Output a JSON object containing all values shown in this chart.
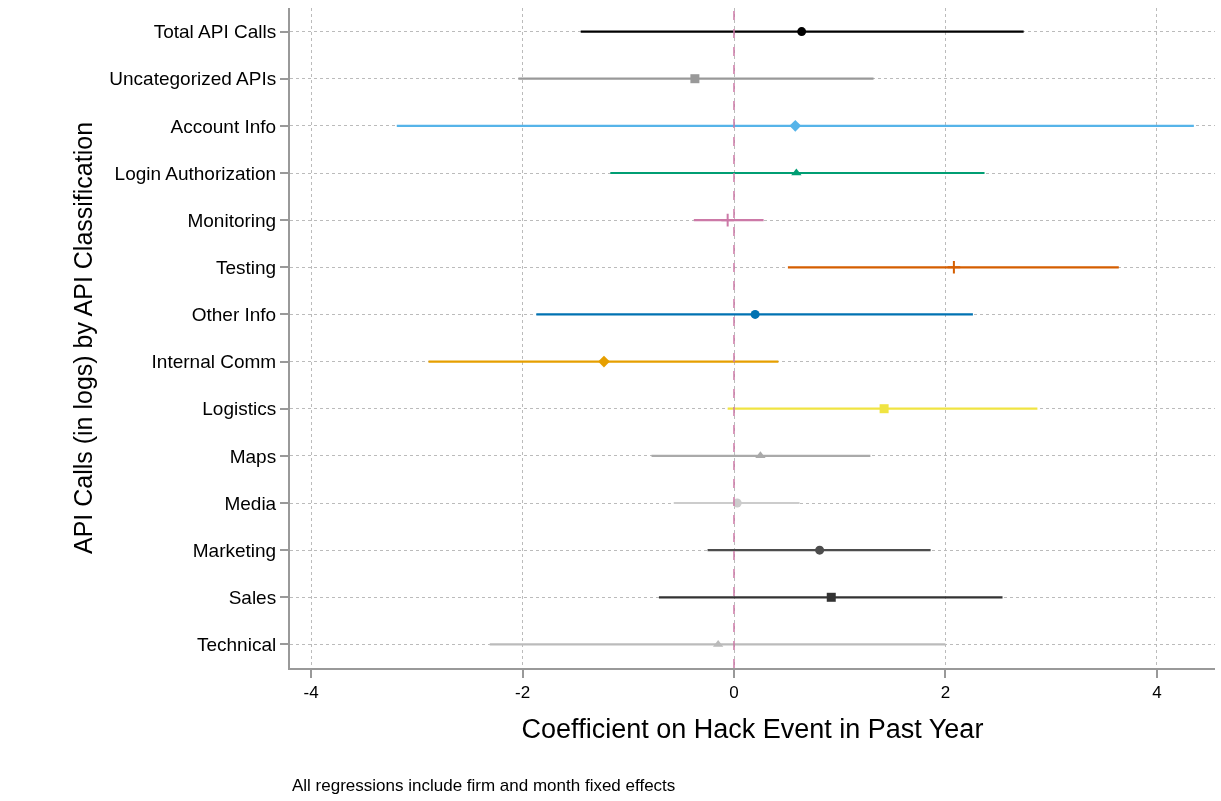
{
  "chart_data": {
    "type": "scatter",
    "orientation": "horizontal",
    "xlabel": "Coefficient on Hack Event in Past Year",
    "ylabel": "API Calls (in logs) by API Classification",
    "annotations": [
      "All regressions include firm and month fixed effects"
    ],
    "categories": [
      "Total API Calls",
      "Uncategorized APIs",
      "Account Info",
      "Login Authorization",
      "Monitoring",
      "Testing",
      "Other Info",
      "Internal Comm",
      "Logistics",
      "Maps",
      "Media",
      "Marketing",
      "Sales",
      "Technical"
    ],
    "xlim": [
      -4.2,
      4.55
    ],
    "xticks": [
      -4,
      -2,
      0,
      2,
      4
    ],
    "grid": true,
    "ref_lines": [
      {
        "axis": "x",
        "value": 0,
        "color": "#cc79a7",
        "line_style": "dashed"
      }
    ],
    "series": [
      {
        "values": [
          0.64,
          null,
          null,
          null,
          null,
          null,
          null,
          null,
          null,
          null,
          null,
          null,
          null,
          null
        ],
        "errors": [
          [
            -1.45,
            2.74
          ],
          null,
          null,
          null,
          null,
          null,
          null,
          null,
          null,
          null,
          null,
          null,
          null,
          null
        ],
        "color": "#000000",
        "marker": "circle"
      },
      {
        "values": [
          null,
          -0.37,
          null,
          null,
          null,
          null,
          null,
          null,
          null,
          null,
          null,
          null,
          null,
          null
        ],
        "errors": [
          null,
          [
            -2.04,
            1.32
          ],
          null,
          null,
          null,
          null,
          null,
          null,
          null,
          null,
          null,
          null,
          null,
          null
        ],
        "color": "#999999",
        "marker": "square"
      },
      {
        "values": [
          null,
          null,
          0.58,
          null,
          null,
          null,
          null,
          null,
          null,
          null,
          null,
          null,
          null,
          null
        ],
        "errors": [
          null,
          null,
          [
            -3.19,
            4.35
          ],
          null,
          null,
          null,
          null,
          null,
          null,
          null,
          null,
          null,
          null,
          null
        ],
        "color": "#56b4e9",
        "marker": "diamond"
      },
      {
        "values": [
          null,
          null,
          null,
          0.59,
          null,
          null,
          null,
          null,
          null,
          null,
          null,
          null,
          null,
          null
        ],
        "errors": [
          null,
          null,
          null,
          [
            -1.17,
            2.37
          ],
          null,
          null,
          null,
          null,
          null,
          null,
          null,
          null,
          null,
          null
        ],
        "color": "#009e73",
        "marker": "triangle"
      },
      {
        "values": [
          null,
          null,
          null,
          null,
          -0.06,
          null,
          null,
          null,
          null,
          null,
          null,
          null,
          null,
          null
        ],
        "errors": [
          null,
          null,
          null,
          null,
          [
            -0.38,
            0.28
          ],
          null,
          null,
          null,
          null,
          null,
          null,
          null,
          null,
          null
        ],
        "color": "#cc79a7",
        "marker": "cross"
      },
      {
        "values": [
          null,
          null,
          null,
          null,
          null,
          2.08,
          null,
          null,
          null,
          null,
          null,
          null,
          null,
          null
        ],
        "errors": [
          null,
          null,
          null,
          null,
          null,
          [
            0.51,
            3.64
          ],
          null,
          null,
          null,
          null,
          null,
          null,
          null,
          null
        ],
        "color": "#d55e00",
        "marker": "cross"
      },
      {
        "values": [
          null,
          null,
          null,
          null,
          null,
          null,
          0.2,
          null,
          null,
          null,
          null,
          null,
          null,
          null
        ],
        "errors": [
          null,
          null,
          null,
          null,
          null,
          null,
          [
            -1.87,
            2.26
          ],
          null,
          null,
          null,
          null,
          null,
          null,
          null
        ],
        "color": "#0072b2",
        "marker": "circle"
      },
      {
        "values": [
          null,
          null,
          null,
          null,
          null,
          null,
          null,
          -1.23,
          null,
          null,
          null,
          null,
          null,
          null
        ],
        "errors": [
          null,
          null,
          null,
          null,
          null,
          null,
          null,
          [
            -2.89,
            0.42
          ],
          null,
          null,
          null,
          null,
          null,
          null
        ],
        "color": "#e69f00",
        "marker": "diamond"
      },
      {
        "values": [
          null,
          null,
          null,
          null,
          null,
          null,
          null,
          null,
          1.42,
          null,
          null,
          null,
          null,
          null
        ],
        "errors": [
          null,
          null,
          null,
          null,
          null,
          null,
          null,
          null,
          [
            -0.06,
            2.87
          ],
          null,
          null,
          null,
          null,
          null
        ],
        "color": "#f0e442",
        "marker": "square"
      },
      {
        "values": [
          null,
          null,
          null,
          null,
          null,
          null,
          null,
          null,
          null,
          0.25,
          null,
          null,
          null,
          null
        ],
        "errors": [
          null,
          null,
          null,
          null,
          null,
          null,
          null,
          null,
          null,
          [
            -0.78,
            1.29
          ],
          null,
          null,
          null,
          null
        ],
        "color": "#aaaaaa",
        "marker": "triangle"
      },
      {
        "values": [
          null,
          null,
          null,
          null,
          null,
          null,
          null,
          null,
          null,
          null,
          0.03,
          null,
          null,
          null
        ],
        "errors": [
          null,
          null,
          null,
          null,
          null,
          null,
          null,
          null,
          null,
          null,
          [
            -0.57,
            0.62
          ],
          null,
          null,
          null
        ],
        "color": "#cccccc",
        "marker": "circle"
      },
      {
        "values": [
          null,
          null,
          null,
          null,
          null,
          null,
          null,
          null,
          null,
          null,
          null,
          0.81,
          null,
          null
        ],
        "errors": [
          null,
          null,
          null,
          null,
          null,
          null,
          null,
          null,
          null,
          null,
          null,
          [
            -0.25,
            1.86
          ],
          null,
          null
        ],
        "color": "#4d4d4d",
        "marker": "circle"
      },
      {
        "values": [
          null,
          null,
          null,
          null,
          null,
          null,
          null,
          null,
          null,
          null,
          null,
          null,
          0.92,
          null
        ],
        "errors": [
          null,
          null,
          null,
          null,
          null,
          null,
          null,
          null,
          null,
          null,
          null,
          null,
          [
            -0.71,
            2.54
          ],
          null
        ],
        "color": "#333333",
        "marker": "square"
      },
      {
        "values": [
          null,
          null,
          null,
          null,
          null,
          null,
          null,
          null,
          null,
          null,
          null,
          null,
          null,
          -0.15
        ],
        "errors": [
          null,
          null,
          null,
          null,
          null,
          null,
          null,
          null,
          null,
          null,
          null,
          null,
          null,
          [
            -2.31,
            2.0
          ]
        ],
        "color": "#bbbbbb",
        "marker": "triangle"
      }
    ]
  }
}
